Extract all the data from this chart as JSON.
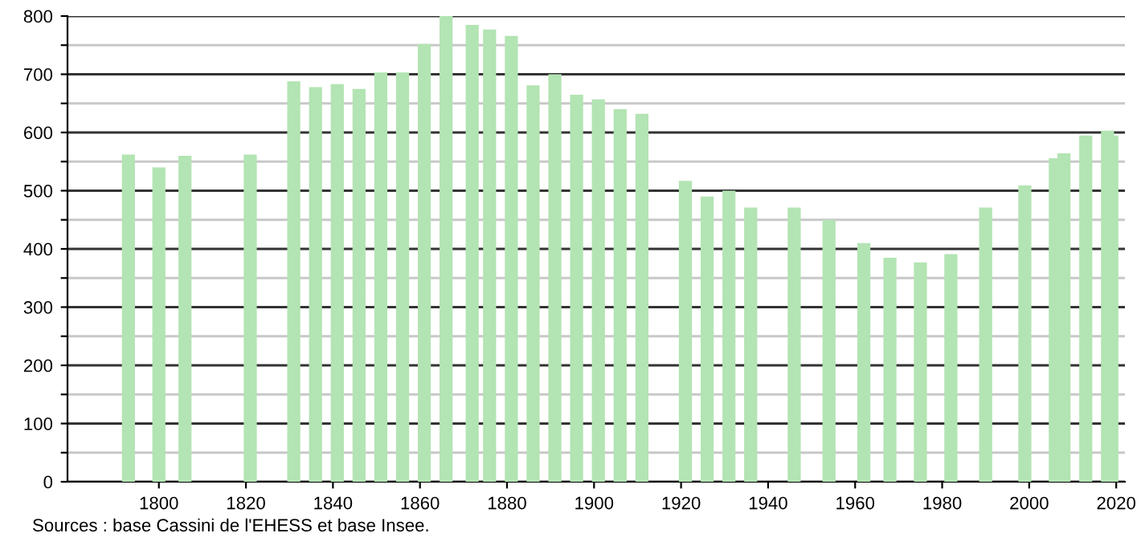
{
  "chart_data": {
    "type": "bar",
    "color": "#b3e4b3",
    "x": [
      1793,
      1800,
      1806,
      1821,
      1831,
      1836,
      1841,
      1846,
      1851,
      1856,
      1861,
      1866,
      1872,
      1876,
      1881,
      1886,
      1891,
      1896,
      1901,
      1906,
      1911,
      1921,
      1926,
      1931,
      1936,
      1946,
      1954,
      1962,
      1968,
      1975,
      1982,
      1990,
      1999,
      2006,
      2008,
      2013,
      2018,
      2019
    ],
    "values": [
      562,
      540,
      560,
      562,
      688,
      678,
      683,
      675,
      703,
      703,
      752,
      800,
      785,
      777,
      766,
      681,
      700,
      665,
      657,
      640,
      632,
      517,
      490,
      500,
      471,
      471,
      450,
      410,
      385,
      377,
      391,
      471,
      509,
      556,
      564,
      595,
      603,
      595
    ],
    "xlim": [
      1779,
      2022
    ],
    "xticks": [
      1800,
      1820,
      1840,
      1860,
      1880,
      1900,
      1920,
      1940,
      1960,
      1980,
      2000,
      2020
    ],
    "ylim": [
      0,
      800
    ],
    "yticks": [
      0,
      {
        "value": 50,
        "label": null
      },
      100,
      {
        "value": 150,
        "label": null
      },
      200,
      {
        "value": 250,
        "label": null
      },
      300,
      {
        "value": 350,
        "label": null
      },
      400,
      {
        "value": 450,
        "label": null
      },
      500,
      {
        "value": 550,
        "label": null
      },
      600,
      {
        "value": 650,
        "label": null
      },
      700,
      {
        "value": 750,
        "label": null
      },
      800
    ],
    "grid": "y",
    "annotations": [
      "Sources : base Cassini de l'EHESS et base Insee."
    ]
  }
}
